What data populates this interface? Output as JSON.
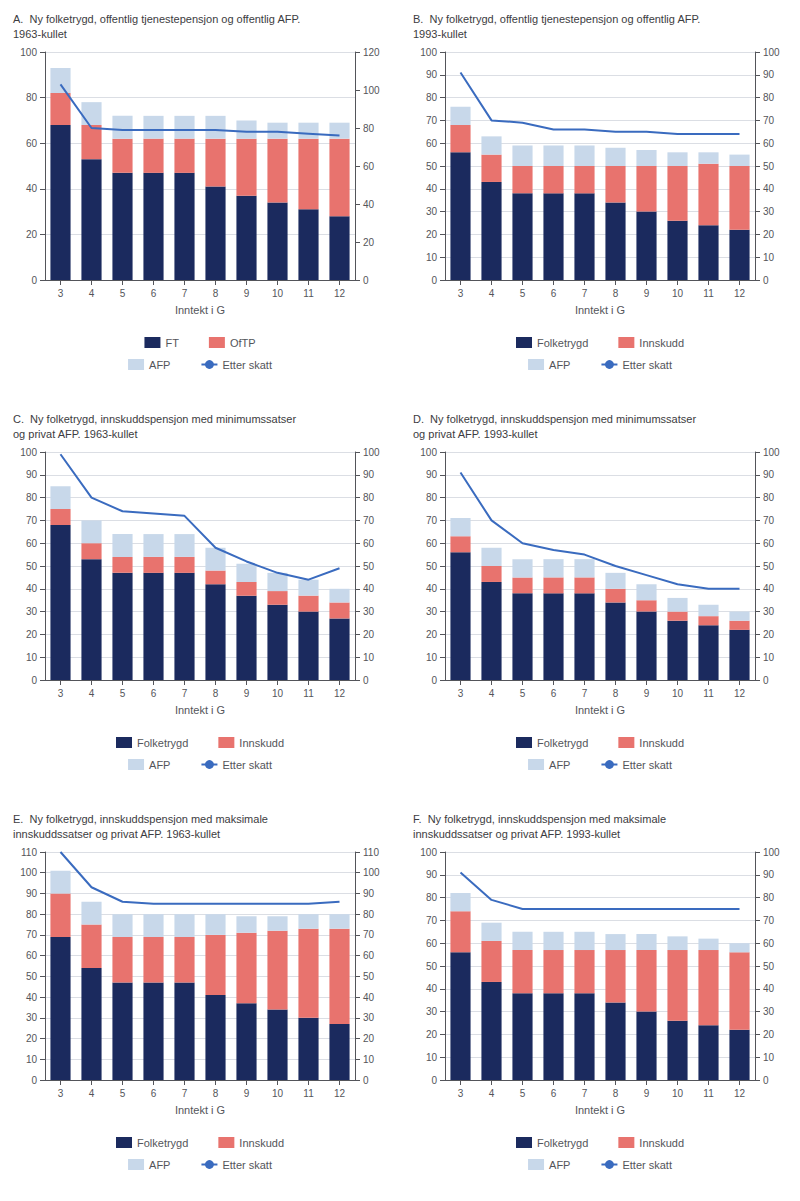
{
  "chart_data": [
    {
      "type": "bar",
      "title": "A.  Ny folketrygd, offentlig tjenestepensjon og offentlig AFP.\n1963-kullet",
      "xlabel": "Inntekt i G",
      "categories": [
        3,
        4,
        5,
        6,
        7,
        8,
        9,
        10,
        11,
        12
      ],
      "stacked": true,
      "grid": true,
      "legend": "bottom",
      "series": [
        {
          "name": "FT",
          "color": "#1b2a5e",
          "values": [
            68,
            53,
            47,
            47,
            47,
            41,
            37,
            34,
            31,
            28
          ]
        },
        {
          "name": "OfTP",
          "color": "#e8736e",
          "values": [
            14,
            15,
            15,
            15,
            15,
            21,
            25,
            28,
            31,
            34
          ]
        },
        {
          "name": "AFP",
          "color": "#c8d8ea",
          "values": [
            11,
            10,
            10,
            10,
            10,
            10,
            8,
            7,
            7,
            7
          ]
        },
        {
          "name": "Etter skatt",
          "type": "line",
          "axis": "y2",
          "color": "#3a6bbf",
          "values": [
            103,
            80,
            79,
            79,
            79,
            79,
            78,
            78,
            77,
            76
          ]
        }
      ],
      "ylim": [
        0,
        100
      ],
      "yticks": [
        0,
        20,
        40,
        60,
        80,
        100
      ],
      "y2lim": [
        0,
        120
      ],
      "y2ticks": [
        0,
        20,
        40,
        60,
        80,
        100,
        120
      ]
    },
    {
      "type": "bar",
      "title": "B.  Ny folketrygd, offentlig tjenestepensjon og offentlig AFP.\n1993-kullet",
      "xlabel": "Inntekt i G",
      "categories": [
        3,
        4,
        5,
        6,
        7,
        8,
        9,
        10,
        11,
        12
      ],
      "stacked": true,
      "grid": true,
      "legend": "bottom",
      "series": [
        {
          "name": "Folketrygd",
          "color": "#1b2a5e",
          "values": [
            56,
            43,
            38,
            38,
            38,
            34,
            30,
            26,
            24,
            22
          ]
        },
        {
          "name": "Innskudd",
          "color": "#e8736e",
          "values": [
            12,
            12,
            12,
            12,
            12,
            16,
            20,
            24,
            27,
            28
          ]
        },
        {
          "name": "AFP",
          "color": "#c8d8ea",
          "values": [
            8,
            8,
            9,
            9,
            9,
            8,
            7,
            6,
            5,
            5
          ]
        },
        {
          "name": "Etter skatt",
          "type": "line",
          "axis": "y2",
          "color": "#3a6bbf",
          "values": [
            91,
            70,
            69,
            66,
            66,
            65,
            65,
            64,
            64,
            64
          ]
        }
      ],
      "ylim": [
        0,
        100
      ],
      "yticks": [
        0,
        10,
        20,
        30,
        40,
        50,
        60,
        70,
        80,
        90,
        100
      ],
      "y2lim": [
        0,
        100
      ],
      "y2ticks": [
        0,
        10,
        20,
        30,
        40,
        50,
        60,
        70,
        80,
        90,
        100
      ]
    },
    {
      "type": "bar",
      "title": "C.  Ny folketrygd, innskuddspensjon med minimumssatser\nog privat AFP. 1963-kullet",
      "xlabel": "Inntekt i G",
      "categories": [
        3,
        4,
        5,
        6,
        7,
        8,
        9,
        10,
        11,
        12
      ],
      "stacked": true,
      "grid": true,
      "legend": "bottom",
      "series": [
        {
          "name": "Folketrygd",
          "color": "#1b2a5e",
          "values": [
            68,
            53,
            47,
            47,
            47,
            42,
            37,
            33,
            30,
            27
          ]
        },
        {
          "name": "Innskudd",
          "color": "#e8736e",
          "values": [
            7,
            7,
            7,
            7,
            7,
            6,
            6,
            6,
            7,
            7
          ]
        },
        {
          "name": "AFP",
          "color": "#c8d8ea",
          "values": [
            10,
            10,
            10,
            10,
            10,
            10,
            8,
            8,
            7,
            6
          ]
        },
        {
          "name": "Etter skatt",
          "type": "line",
          "axis": "y2",
          "color": "#3a6bbf",
          "values": [
            99,
            80,
            74,
            73,
            72,
            58,
            52,
            47,
            44,
            49
          ]
        }
      ],
      "ylim": [
        0,
        100
      ],
      "yticks": [
        0,
        10,
        20,
        30,
        40,
        50,
        60,
        70,
        80,
        90,
        100
      ],
      "y2lim": [
        0,
        100
      ],
      "y2ticks": [
        0,
        10,
        20,
        30,
        40,
        50,
        60,
        70,
        80,
        90,
        100
      ]
    },
    {
      "type": "bar",
      "title": "D.  Ny folketrygd, innskuddspensjon med minimumssatser\nog privat AFP. 1993-kullet",
      "xlabel": "Inntekt i G",
      "categories": [
        3,
        4,
        5,
        6,
        7,
        8,
        9,
        10,
        11,
        12
      ],
      "stacked": true,
      "grid": true,
      "legend": "bottom",
      "series": [
        {
          "name": "Folketrygd",
          "color": "#1b2a5e",
          "values": [
            56,
            43,
            38,
            38,
            38,
            34,
            30,
            26,
            24,
            22
          ]
        },
        {
          "name": "Innskudd",
          "color": "#e8736e",
          "values": [
            7,
            7,
            7,
            7,
            7,
            6,
            5,
            4,
            4,
            4
          ]
        },
        {
          "name": "AFP",
          "color": "#c8d8ea",
          "values": [
            8,
            8,
            8,
            8,
            8,
            7,
            7,
            6,
            5,
            4
          ]
        },
        {
          "name": "Etter skatt",
          "type": "line",
          "axis": "y2",
          "color": "#3a6bbf",
          "values": [
            91,
            70,
            60,
            57,
            55,
            50,
            46,
            42,
            40,
            40
          ]
        }
      ],
      "ylim": [
        0,
        100
      ],
      "yticks": [
        0,
        10,
        20,
        30,
        40,
        50,
        60,
        70,
        80,
        90,
        100
      ],
      "y2lim": [
        0,
        100
      ],
      "y2ticks": [
        0,
        10,
        20,
        30,
        40,
        50,
        60,
        70,
        80,
        90,
        100
      ]
    },
    {
      "type": "bar",
      "title": "E.  Ny folketrygd, innskuddspensjon med maksimale\ninnskuddssatser og privat AFP. 1963-kullet",
      "xlabel": "Inntekt i G",
      "categories": [
        3,
        4,
        5,
        6,
        7,
        8,
        9,
        10,
        11,
        12
      ],
      "stacked": true,
      "grid": true,
      "legend": "bottom",
      "series": [
        {
          "name": "Folketrygd",
          "color": "#1b2a5e",
          "values": [
            69,
            54,
            47,
            47,
            47,
            41,
            37,
            34,
            30,
            27
          ]
        },
        {
          "name": "Innskudd",
          "color": "#e8736e",
          "values": [
            21,
            21,
            22,
            22,
            22,
            29,
            34,
            38,
            43,
            46
          ]
        },
        {
          "name": "AFP",
          "color": "#c8d8ea",
          "values": [
            11,
            11,
            11,
            11,
            11,
            10,
            8,
            7,
            7,
            7
          ]
        },
        {
          "name": "Etter skatt",
          "type": "line",
          "axis": "y2",
          "color": "#3a6bbf",
          "values": [
            110,
            93,
            86,
            85,
            85,
            85,
            85,
            85,
            85,
            86
          ]
        }
      ],
      "ylim": [
        0,
        110
      ],
      "yticks": [
        0,
        10,
        20,
        30,
        40,
        50,
        60,
        70,
        80,
        90,
        100,
        110
      ],
      "y2lim": [
        0,
        110
      ],
      "y2ticks": [
        0,
        10,
        20,
        30,
        40,
        50,
        60,
        70,
        80,
        90,
        100,
        110
      ]
    },
    {
      "type": "bar",
      "title": "F.  Ny folketrygd, innskuddspensjon med maksimale\ninnskuddssatser og privat AFP. 1993-kullet",
      "xlabel": "Inntekt i G",
      "categories": [
        3,
        4,
        5,
        6,
        7,
        8,
        9,
        10,
        11,
        12
      ],
      "stacked": true,
      "grid": true,
      "legend": "bottom",
      "series": [
        {
          "name": "Folketrygd",
          "color": "#1b2a5e",
          "values": [
            56,
            43,
            38,
            38,
            38,
            34,
            30,
            26,
            24,
            22
          ]
        },
        {
          "name": "Innskudd",
          "color": "#e8736e",
          "values": [
            18,
            18,
            19,
            19,
            19,
            23,
            27,
            31,
            33,
            34
          ]
        },
        {
          "name": "AFP",
          "color": "#c8d8ea",
          "values": [
            8,
            8,
            8,
            8,
            8,
            7,
            7,
            6,
            5,
            4
          ]
        },
        {
          "name": "Etter skatt",
          "type": "line",
          "axis": "y2",
          "color": "#3a6bbf",
          "values": [
            91,
            79,
            75,
            75,
            75,
            75,
            75,
            75,
            75,
            75
          ]
        }
      ],
      "ylim": [
        0,
        100
      ],
      "yticks": [
        0,
        10,
        20,
        30,
        40,
        50,
        60,
        70,
        80,
        90,
        100
      ],
      "y2lim": [
        0,
        100
      ],
      "y2ticks": [
        0,
        10,
        20,
        30,
        40,
        50,
        60,
        70,
        80,
        90,
        100
      ]
    }
  ]
}
